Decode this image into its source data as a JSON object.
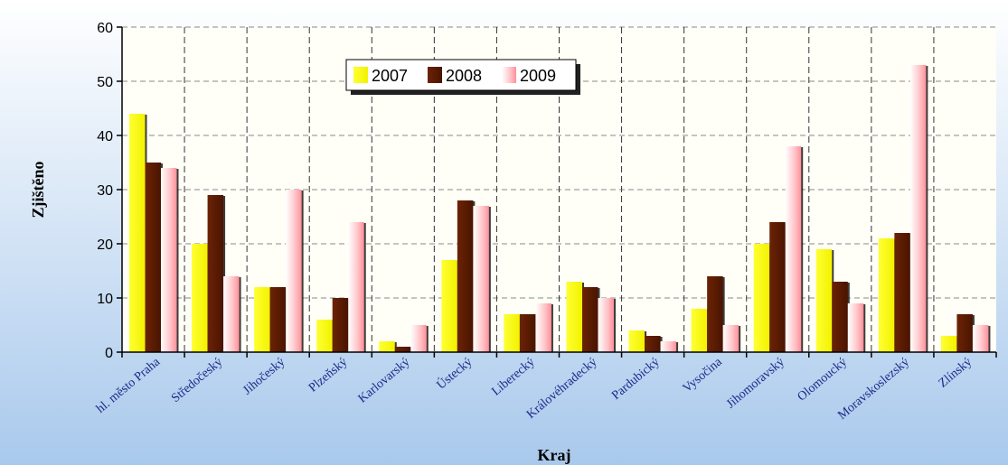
{
  "chart_data": {
    "type": "bar",
    "categories": [
      "hl. město Praha",
      "Středočeský",
      "Jihočeský",
      "Plzeňský",
      "Karlovarský",
      "Ústecký",
      "Liberecký",
      "Královéhradecký",
      "Pardubický",
      "Vysočina",
      "Jihomoravský",
      "Olomoucký",
      "Moravskoslezský",
      "Zlínský"
    ],
    "series": [
      {
        "name": "2007",
        "color": "#ffff00",
        "values": [
          44,
          20,
          12,
          6,
          2,
          17,
          7,
          13,
          4,
          8,
          20,
          19,
          21,
          3
        ]
      },
      {
        "name": "2008",
        "color": "#5c1a00",
        "values": [
          35,
          29,
          12,
          10,
          1,
          28,
          7,
          12,
          3,
          14,
          24,
          13,
          22,
          7
        ]
      },
      {
        "name": "2009",
        "color": "#ffb3b8",
        "values": [
          34,
          14,
          30,
          24,
          5,
          27,
          9,
          10,
          2,
          5,
          38,
          9,
          53,
          5
        ]
      }
    ],
    "xlabel": "Kraj",
    "ylabel": "Zjištěno",
    "ylim": [
      0,
      60
    ],
    "yticks": [
      0,
      10,
      20,
      30,
      40,
      50,
      60
    ],
    "grid": true,
    "legend_position": "top-center"
  }
}
